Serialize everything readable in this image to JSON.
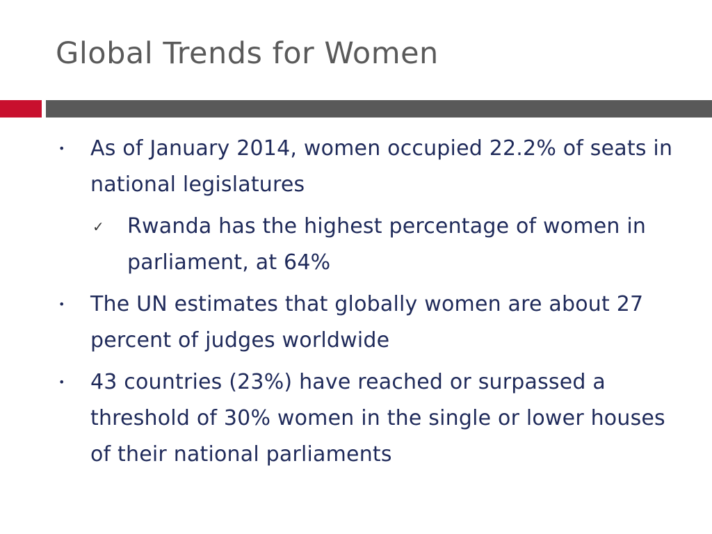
{
  "slide": {
    "title": "Global Trends for Women",
    "colors": {
      "accent": "#c8102e",
      "divider": "#595959",
      "title": "#5a5a5a",
      "body_text": "#1f2a5a"
    },
    "bullets": [
      {
        "level": 1,
        "marker": "•",
        "marker_icon": "bullet-dot-icon",
        "text": "As of January 2014, women occupied 22.2% of seats in national legislatures"
      },
      {
        "level": 2,
        "marker": "✓",
        "marker_icon": "checkmark-icon",
        "text": "Rwanda has the highest percentage of women in parliament, at 64%"
      },
      {
        "level": 1,
        "marker": "•",
        "marker_icon": "bullet-dot-icon",
        "text": "The UN estimates that globally women are about 27 percent of judges worldwide"
      },
      {
        "level": 1,
        "marker": "•",
        "marker_icon": "bullet-dot-icon",
        "text": "43 countries (23%) have reached or surpassed a threshold of 30% women in the single or lower houses of their national parliaments"
      }
    ]
  }
}
